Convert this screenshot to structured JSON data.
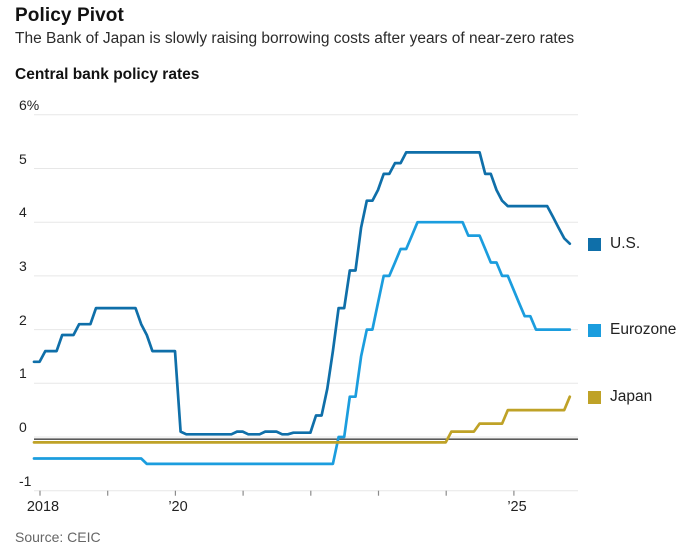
{
  "header": {
    "title": "Policy Pivot",
    "subtitle": "The Bank of Japan is slowly raising borrowing costs after years of near-zero rates"
  },
  "source": "Source: CEIC",
  "chart_data": {
    "type": "line",
    "title": "Central bank policy rates",
    "unit": "%",
    "x_start_year": 2018,
    "x_start_month": 1,
    "x_step_months": 1,
    "ylim": [
      -1,
      6
    ],
    "grid": true,
    "legend_position": "right",
    "yticks": [
      {
        "v": 6,
        "label": "6%"
      },
      {
        "v": 5,
        "label": "5"
      },
      {
        "v": 4,
        "label": "4"
      },
      {
        "v": 3,
        "label": "3"
      },
      {
        "v": 2,
        "label": "2"
      },
      {
        "v": 1,
        "label": "1"
      },
      {
        "v": 0,
        "label": "0"
      },
      {
        "v": -1,
        "label": "-1"
      }
    ],
    "xticks": [
      {
        "year": 2018,
        "label": "2018"
      },
      {
        "year": 2019,
        "label": ""
      },
      {
        "year": 2020,
        "label": "’20"
      },
      {
        "year": 2021,
        "label": ""
      },
      {
        "year": 2022,
        "label": ""
      },
      {
        "year": 2023,
        "label": ""
      },
      {
        "year": 2024,
        "label": ""
      },
      {
        "year": 2025,
        "label": "’25"
      }
    ],
    "colors": {
      "grid": "#e7e7e7",
      "zero_line": "#5a5a5a",
      "tick": "#8c8c8c"
    },
    "series": [
      {
        "name": "U.S.",
        "color": "#0f6fa9",
        "values": [
          1.4,
          1.4,
          1.6,
          1.6,
          1.6,
          1.9,
          1.9,
          1.9,
          2.1,
          2.1,
          2.1,
          2.4,
          2.4,
          2.4,
          2.4,
          2.4,
          2.4,
          2.4,
          2.4,
          2.1,
          1.9,
          1.6,
          1.6,
          1.6,
          1.6,
          1.6,
          0.1,
          0.05,
          0.05,
          0.05,
          0.05,
          0.05,
          0.05,
          0.05,
          0.05,
          0.05,
          0.1,
          0.1,
          0.05,
          0.05,
          0.05,
          0.1,
          0.1,
          0.1,
          0.05,
          0.05,
          0.08,
          0.08,
          0.08,
          0.08,
          0.4,
          0.4,
          0.9,
          1.6,
          2.4,
          2.4,
          3.1,
          3.1,
          3.9,
          4.4,
          4.4,
          4.6,
          4.9,
          4.9,
          5.1,
          5.1,
          5.3,
          5.3,
          5.3,
          5.3,
          5.3,
          5.3,
          5.3,
          5.3,
          5.3,
          5.3,
          5.3,
          5.3,
          5.3,
          5.3,
          4.9,
          4.9,
          4.6,
          4.4,
          4.3,
          4.3,
          4.3,
          4.3,
          4.3,
          4.3,
          4.3,
          4.3,
          4.1,
          3.9,
          3.7,
          3.6
        ]
      },
      {
        "name": "Eurozone",
        "color": "#1b9dde",
        "values": [
          -0.4,
          -0.4,
          -0.4,
          -0.4,
          -0.4,
          -0.4,
          -0.4,
          -0.4,
          -0.4,
          -0.4,
          -0.4,
          -0.4,
          -0.4,
          -0.4,
          -0.4,
          -0.4,
          -0.4,
          -0.4,
          -0.4,
          -0.4,
          -0.5,
          -0.5,
          -0.5,
          -0.5,
          -0.5,
          -0.5,
          -0.5,
          -0.5,
          -0.5,
          -0.5,
          -0.5,
          -0.5,
          -0.5,
          -0.5,
          -0.5,
          -0.5,
          -0.5,
          -0.5,
          -0.5,
          -0.5,
          -0.5,
          -0.5,
          -0.5,
          -0.5,
          -0.5,
          -0.5,
          -0.5,
          -0.5,
          -0.5,
          -0.5,
          -0.5,
          -0.5,
          -0.5,
          -0.5,
          0.0,
          0.0,
          0.75,
          0.75,
          1.5,
          2.0,
          2.0,
          2.5,
          3.0,
          3.0,
          3.25,
          3.5,
          3.5,
          3.75,
          4.0,
          4.0,
          4.0,
          4.0,
          4.0,
          4.0,
          4.0,
          4.0,
          4.0,
          3.75,
          3.75,
          3.75,
          3.5,
          3.25,
          3.25,
          3.0,
          3.0,
          2.75,
          2.5,
          2.25,
          2.25,
          2.0,
          2.0,
          2.0,
          2.0,
          2.0,
          2.0,
          2.0
        ]
      },
      {
        "name": "Japan",
        "color": "#bfa227",
        "values": [
          -0.1,
          -0.1,
          -0.1,
          -0.1,
          -0.1,
          -0.1,
          -0.1,
          -0.1,
          -0.1,
          -0.1,
          -0.1,
          -0.1,
          -0.1,
          -0.1,
          -0.1,
          -0.1,
          -0.1,
          -0.1,
          -0.1,
          -0.1,
          -0.1,
          -0.1,
          -0.1,
          -0.1,
          -0.1,
          -0.1,
          -0.1,
          -0.1,
          -0.1,
          -0.1,
          -0.1,
          -0.1,
          -0.1,
          -0.1,
          -0.1,
          -0.1,
          -0.1,
          -0.1,
          -0.1,
          -0.1,
          -0.1,
          -0.1,
          -0.1,
          -0.1,
          -0.1,
          -0.1,
          -0.1,
          -0.1,
          -0.1,
          -0.1,
          -0.1,
          -0.1,
          -0.1,
          -0.1,
          -0.1,
          -0.1,
          -0.1,
          -0.1,
          -0.1,
          -0.1,
          -0.1,
          -0.1,
          -0.1,
          -0.1,
          -0.1,
          -0.1,
          -0.1,
          -0.1,
          -0.1,
          -0.1,
          -0.1,
          -0.1,
          -0.1,
          -0.1,
          0.1,
          0.1,
          0.1,
          0.1,
          0.1,
          0.25,
          0.25,
          0.25,
          0.25,
          0.25,
          0.5,
          0.5,
          0.5,
          0.5,
          0.5,
          0.5,
          0.5,
          0.5,
          0.5,
          0.5,
          0.5,
          0.75
        ]
      }
    ]
  }
}
